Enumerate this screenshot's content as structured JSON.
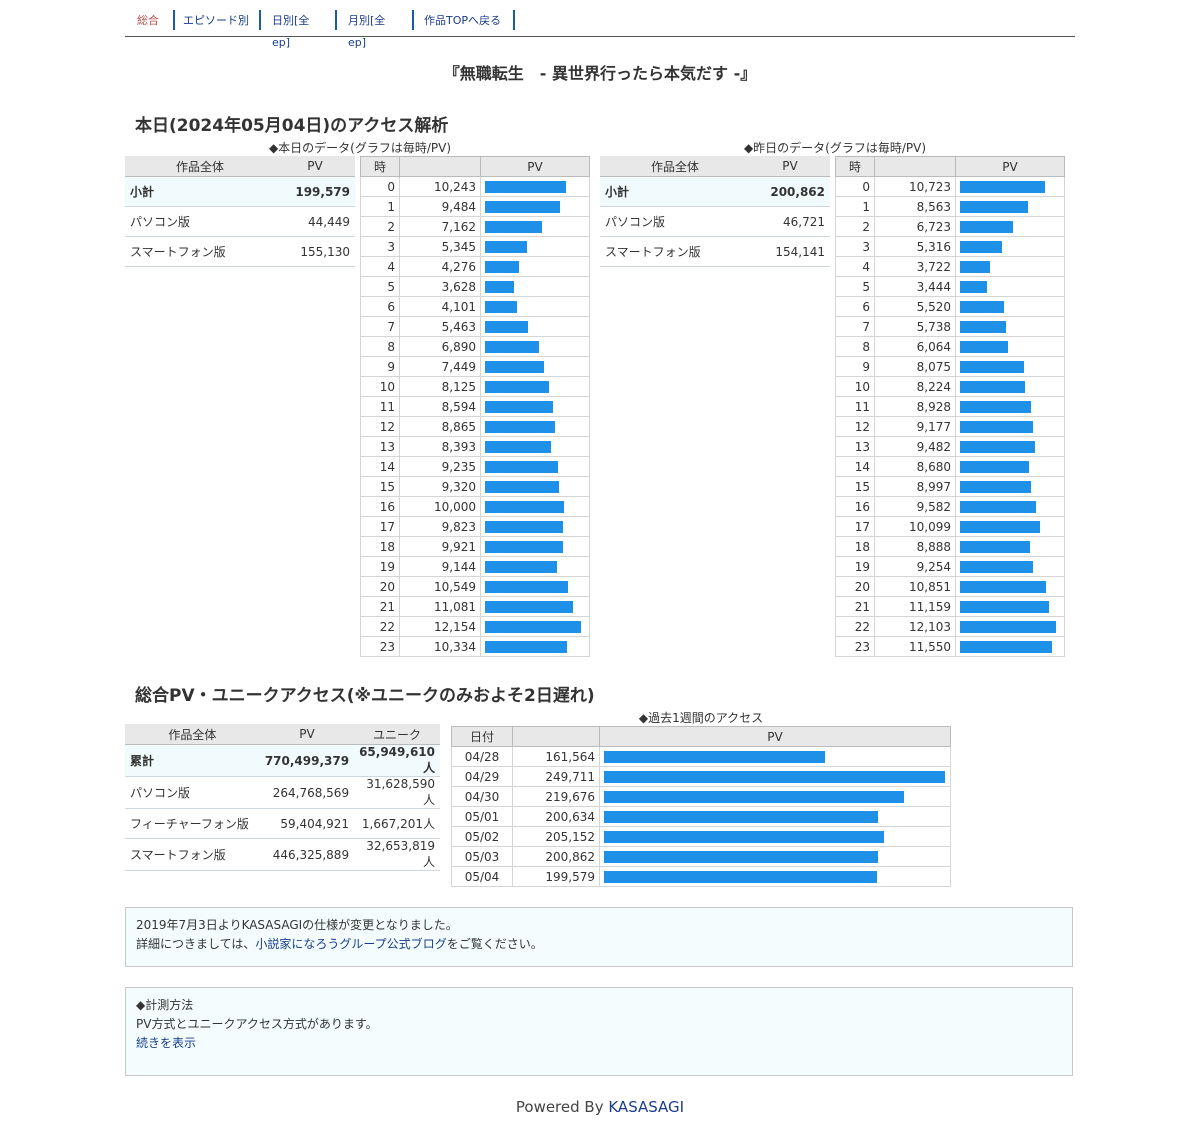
{
  "nav": [
    "総合",
    "エピソード別",
    "日別[全ep]",
    "月別[全ep]",
    "作品TOPへ戻る"
  ],
  "title": "『無職転生　- 異世界行ったら本気だす -』",
  "today_heading": "本日(2024年05月04日)のアクセス解析",
  "today_caption": "◆本日のデータ(グラフは毎時/PV)",
  "yesterday_caption": "◆昨日のデータ(グラフは毎時/PV)",
  "summary_headers": [
    "作品全体",
    "PV"
  ],
  "hourly_headers": [
    "時",
    "PV"
  ],
  "today_summary": [
    {
      "label": "小計",
      "pv": "199,579"
    },
    {
      "label": "パソコン版",
      "pv": "44,449"
    },
    {
      "label": "スマートフォン版",
      "pv": "155,130"
    }
  ],
  "yesterday_summary": [
    {
      "label": "小計",
      "pv": "200,862"
    },
    {
      "label": "パソコン版",
      "pv": "46,721"
    },
    {
      "label": "スマートフォン版",
      "pv": "154,141"
    }
  ],
  "today_hourly": [
    10243,
    9484,
    7162,
    5345,
    4276,
    3628,
    4101,
    5463,
    6890,
    7449,
    8125,
    8594,
    8865,
    8393,
    9235,
    9320,
    10000,
    9823,
    9921,
    9144,
    10549,
    11081,
    12154,
    10334
  ],
  "yesterday_hourly": [
    10723,
    8563,
    6723,
    5316,
    3722,
    3444,
    5520,
    5738,
    6064,
    8075,
    8224,
    8928,
    9177,
    9482,
    8680,
    8997,
    9582,
    10099,
    8888,
    9254,
    10851,
    11159,
    12103,
    11550
  ],
  "total_heading": "総合PV・ユニークアクセス(※ユニークのみおよそ2日遅れ)",
  "total_headers": [
    "作品全体",
    "PV",
    "ユニーク"
  ],
  "total_rows": [
    {
      "label": "累計",
      "pv": "770,499,379",
      "unique": "65,949,610人"
    },
    {
      "label": "パソコン版",
      "pv": "264,768,569",
      "unique": "31,628,590人"
    },
    {
      "label": "フィーチャーフォン版",
      "pv": "59,404,921",
      "unique": "1,667,201人"
    },
    {
      "label": "スマートフォン版",
      "pv": "446,325,889",
      "unique": "32,653,819人"
    }
  ],
  "week_caption": "◆過去1週間のアクセス",
  "week_headers": [
    "日付",
    "PV"
  ],
  "week": [
    {
      "date": "04/28",
      "pv": 161564
    },
    {
      "date": "04/29",
      "pv": 249711
    },
    {
      "date": "04/30",
      "pv": 219676
    },
    {
      "date": "05/01",
      "pv": 200634
    },
    {
      "date": "05/02",
      "pv": 205152
    },
    {
      "date": "05/03",
      "pv": 200862
    },
    {
      "date": "05/04",
      "pv": 199579
    }
  ],
  "notice1": {
    "line1": "2019年7月3日よりKASASAGIの仕様が変更となりました。",
    "line2_pre": "詳細につきましては、",
    "line2_link": "小説家になろうグループ公式ブログ",
    "line2_post": "をご覧ください。"
  },
  "notice2": {
    "title": "◆計測方法",
    "body": "PV方式とユニークアクセス方式があります。",
    "link": "続きを表示"
  },
  "footer": {
    "pre": "Powered By ",
    "link": "KASASAGI"
  },
  "colors": {
    "bar": "#1e90e8",
    "link": "#1a3c8e",
    "subtotal_bg": "#f1fbfd"
  }
}
